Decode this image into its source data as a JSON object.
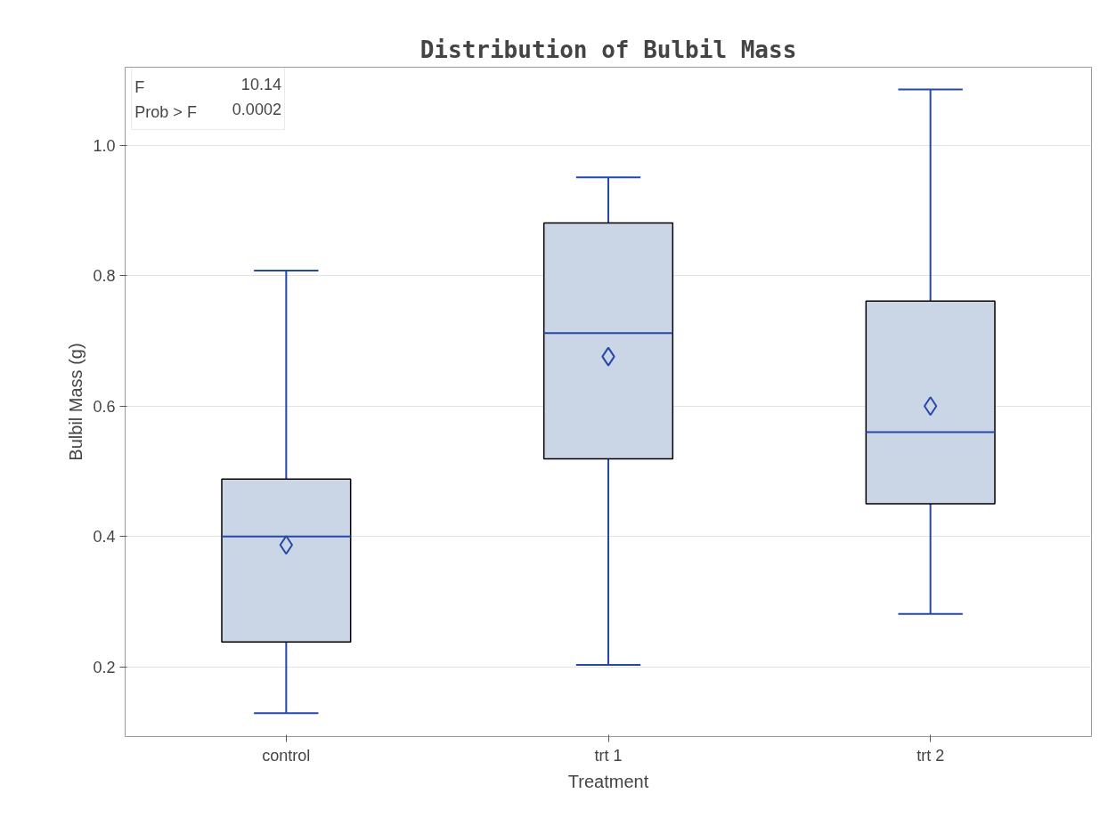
{
  "chart_data": {
    "type": "box",
    "title": "Distribution of Bulbil Mass",
    "xlabel": "Treatment",
    "ylabel": "Bulbil Mass (g)",
    "categories": [
      "control",
      "trt 1",
      "trt 2"
    ],
    "series": [
      {
        "color": "#cad5e6",
        "boxes": [
          {
            "low": 0.129,
            "q1": 0.238,
            "median": 0.4,
            "q3": 0.488,
            "high": 0.808,
            "mean": 0.387
          },
          {
            "low": 0.203,
            "q1": 0.519,
            "median": 0.712,
            "q3": 0.881,
            "high": 0.951,
            "mean": 0.676
          },
          {
            "low": 0.281,
            "q1": 0.45,
            "median": 0.56,
            "q3": 0.761,
            "high": 1.086,
            "mean": 0.6
          }
        ]
      }
    ],
    "ylim": [
      0.093,
      1.12
    ],
    "yticks": [
      {
        "value": 0.2,
        "label": "0.2"
      },
      {
        "value": 0.4,
        "label": "0.4"
      },
      {
        "value": 0.6,
        "label": "0.6"
      },
      {
        "value": 0.8,
        "label": "0.8"
      },
      {
        "value": 1.0,
        "label": "1.0"
      }
    ],
    "grid": "y",
    "marker": "diamond",
    "annotations": [
      "F 10.14",
      "Prob > F 0.0002"
    ]
  }
}
